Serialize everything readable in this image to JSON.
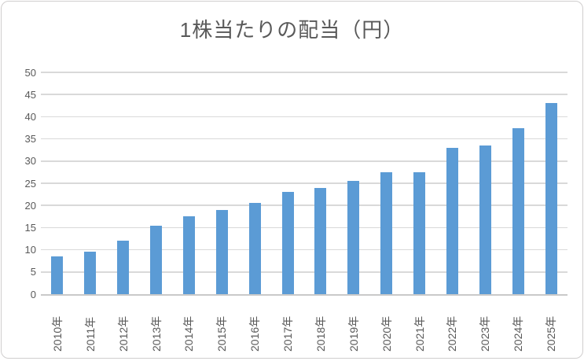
{
  "chart": {
    "colors": {
      "bar": "#5b9bd5",
      "gridline": "#d9d9d9",
      "axis_line": "#c9c9c9",
      "text": "#595959",
      "frame_border": "#d0cece",
      "background": "#ffffff"
    }
  },
  "chart_data": {
    "type": "bar",
    "title": "1株当たりの配当（円）",
    "categories": [
      "2010年",
      "2011年",
      "2012年",
      "2013年",
      "2014年",
      "2015年",
      "2016年",
      "2017年",
      "2018年",
      "2019年",
      "2020年",
      "2021年",
      "2022年",
      "2023年",
      "2024年",
      "2025年"
    ],
    "values": [
      8.5,
      9.5,
      12,
      15.5,
      17.5,
      19,
      20.5,
      23,
      24,
      25.5,
      27.5,
      27.5,
      33,
      33.5,
      37.5,
      43
    ],
    "xlabel": "",
    "ylabel": "",
    "ylim": [
      0,
      50
    ],
    "yticks": [
      0,
      5,
      10,
      15,
      20,
      25,
      30,
      35,
      40,
      45,
      50
    ],
    "ytick_labels": [
      "0",
      "5",
      "10",
      "15",
      "20",
      "25",
      "30",
      "35",
      "40",
      "45",
      "50"
    ],
    "grid": true,
    "gridlines": "horizontal",
    "legend": false,
    "x_tick_rotation": 90,
    "bar_color": "#5b9bd5"
  }
}
